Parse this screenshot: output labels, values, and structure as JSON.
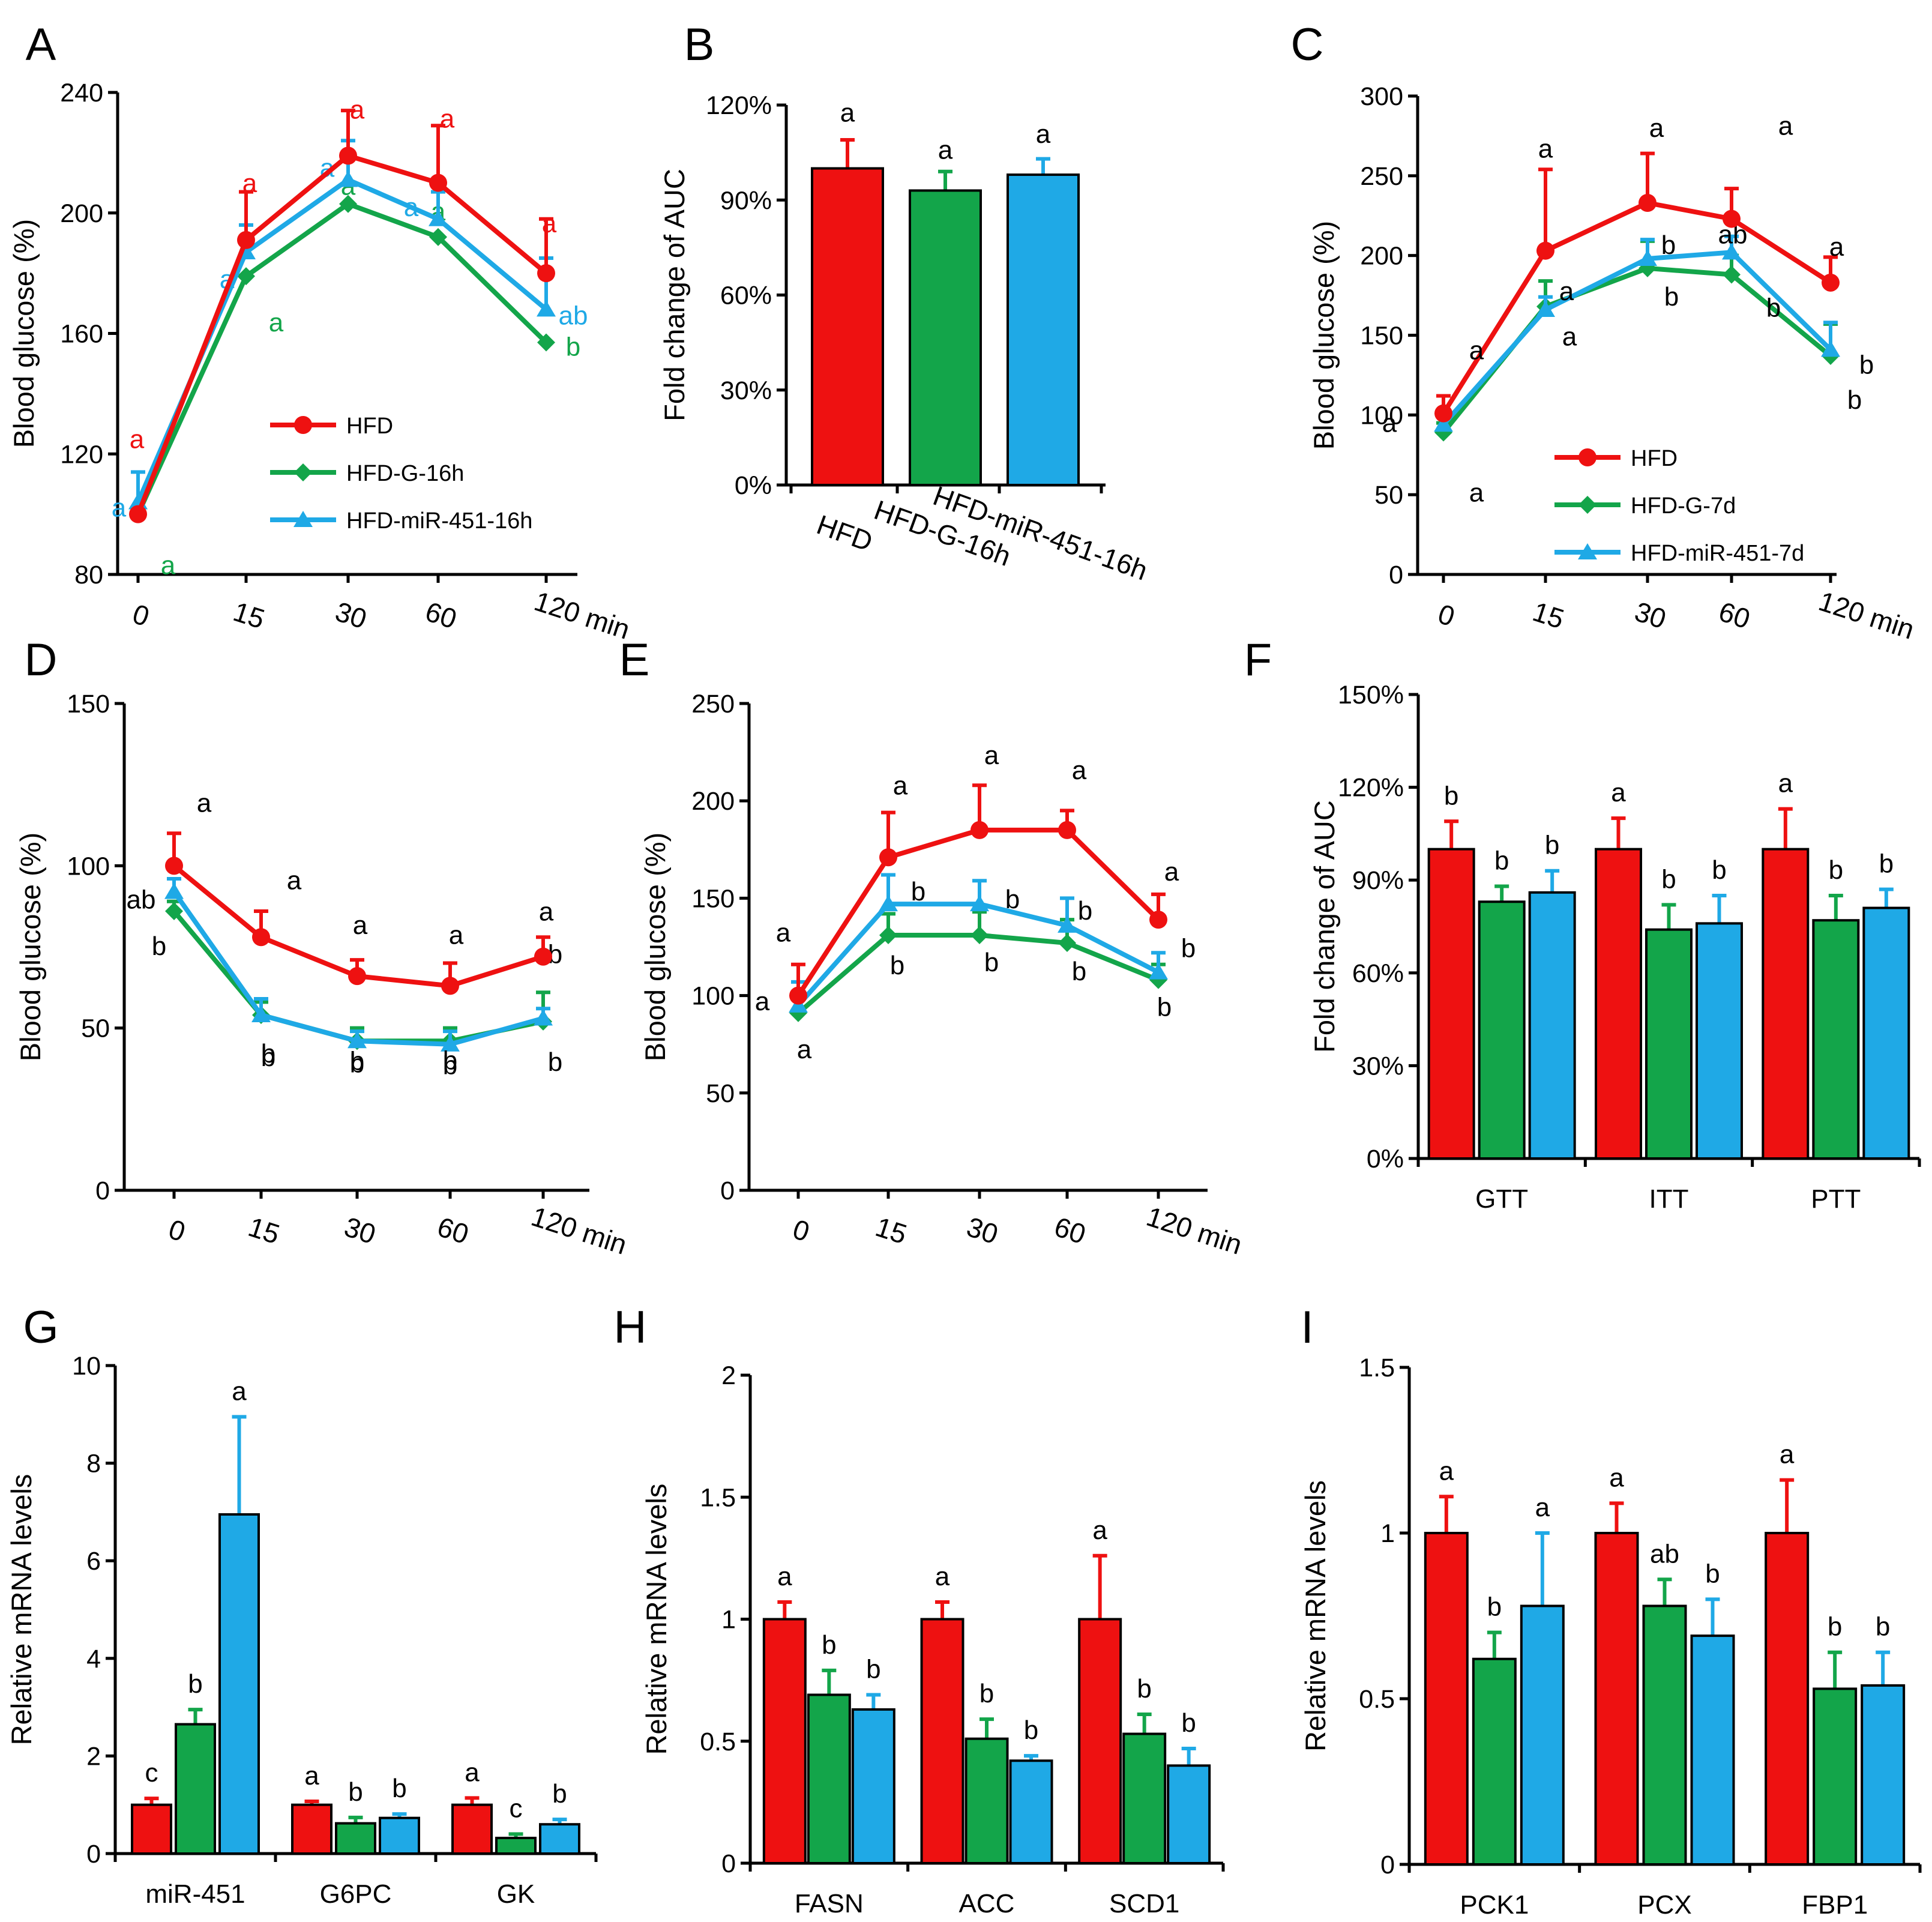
{
  "figure": {
    "series_names": [
      "HFD",
      "HFD-G",
      "HFD-miR-451"
    ],
    "colors": {
      "red": "#ee1111",
      "green": "#13a54a",
      "blue": "#1fa9e6",
      "axis": "#000000"
    }
  },
  "chart_data": [
    {
      "panel": "A",
      "type": "line",
      "x": [
        "0",
        "15",
        "30",
        "60",
        "120 min"
      ],
      "ylabel": "Blood glucose (%)",
      "ylim": [
        80,
        240
      ],
      "yticks": [
        "80",
        "120",
        "160",
        "200",
        "240"
      ],
      "legend": {
        "position": "bottom-right",
        "labels": [
          "HFD",
          "HFD-G-16h",
          "HFD-miR-451-16h"
        ]
      },
      "series": [
        {
          "name": "HFD-G-16h",
          "color": "green",
          "marker": "diamond",
          "values": [
            100,
            179,
            203,
            192,
            157
          ],
          "err": [
            0,
            0,
            0,
            0,
            0
          ],
          "letters": [
            "a",
            "a",
            "a",
            "a",
            "b"
          ]
        },
        {
          "name": "HFD-miR-451-16h",
          "color": "blue",
          "marker": "triangle",
          "values": [
            104,
            187,
            211,
            198,
            168
          ],
          "err": [
            10,
            9,
            13,
            9,
            17
          ],
          "letters": [
            "a",
            "a",
            "a",
            "a",
            "ab"
          ]
        },
        {
          "name": "HFD",
          "color": "red",
          "marker": "circle",
          "values": [
            100,
            191,
            219,
            210,
            180
          ],
          "err": [
            0,
            16,
            15,
            19,
            18
          ],
          "letters": [
            "a",
            "a",
            "a",
            "a",
            "a"
          ]
        }
      ]
    },
    {
      "panel": "B",
      "type": "bar",
      "categories": [
        "HFD",
        "HFD-G-16h",
        "HFD-miR-451-16h"
      ],
      "ylabel": "Fold change of AUC",
      "ylim": [
        0,
        120
      ],
      "yticks": [
        "0%",
        "30%",
        "60%",
        "90%",
        "120%"
      ],
      "values": [
        100,
        93,
        98
      ],
      "err": [
        9,
        6,
        5
      ],
      "colors": [
        "red",
        "green",
        "blue"
      ],
      "letters": [
        "a",
        "a",
        "a"
      ]
    },
    {
      "panel": "C",
      "type": "line",
      "x": [
        "0",
        "15",
        "30",
        "60",
        "120 min"
      ],
      "ylabel": "Blood glucose (%)",
      "ylim": [
        0,
        300
      ],
      "yticks": [
        "0",
        "50",
        "100",
        "150",
        "200",
        "250",
        "300"
      ],
      "legend": {
        "position": "bottom-right",
        "labels": [
          "HFD",
          "HFD-G-7d",
          "HFD-miR-451-7d"
        ]
      },
      "series": [
        {
          "name": "HFD-G-7d",
          "color": "green",
          "marker": "diamond",
          "values": [
            89,
            168,
            192,
            188,
            137
          ],
          "err": [
            6,
            16,
            17,
            12,
            20
          ],
          "letters": [
            "a",
            "a",
            "b",
            "b",
            "b"
          ]
        },
        {
          "name": "HFD-miR-451-7d",
          "color": "blue",
          "marker": "triangle",
          "values": [
            94,
            166,
            198,
            202,
            141
          ],
          "err": [
            0,
            8,
            12,
            10,
            17
          ],
          "letters": [
            "a",
            "a",
            "b",
            "ab",
            "b"
          ]
        },
        {
          "name": "HFD",
          "color": "red",
          "marker": "circle",
          "values": [
            101,
            203,
            233,
            223,
            183
          ],
          "err": [
            11,
            51,
            31,
            19,
            16
          ],
          "letters": [
            "a",
            "a",
            "a",
            "a",
            "a"
          ]
        }
      ]
    },
    {
      "panel": "D",
      "type": "line",
      "x": [
        "0",
        "15",
        "30",
        "60",
        "120 min"
      ],
      "ylabel": "Blood glucose (%)",
      "ylim": [
        0,
        150
      ],
      "yticks": [
        "0",
        "50",
        "100",
        "150"
      ],
      "series": [
        {
          "name": "HFD-G",
          "color": "green",
          "marker": "diamond",
          "values": [
            86,
            54,
            46,
            46,
            52
          ],
          "err": [
            3,
            4,
            4,
            4,
            9
          ],
          "letters": [
            "b",
            "b",
            "b",
            "b",
            "b"
          ]
        },
        {
          "name": "HFD-miR-451",
          "color": "blue",
          "marker": "triangle",
          "values": [
            92,
            54,
            46,
            45,
            53
          ],
          "err": [
            4,
            5,
            3,
            4,
            3
          ],
          "letters": [
            "ab",
            "b",
            "b",
            "b",
            "b"
          ]
        },
        {
          "name": "HFD",
          "color": "red",
          "marker": "circle",
          "values": [
            100,
            78,
            66,
            63,
            72
          ],
          "err": [
            10,
            8,
            5,
            7,
            6
          ],
          "letters": [
            "a",
            "a",
            "a",
            "a",
            "a"
          ]
        }
      ]
    },
    {
      "panel": "E",
      "type": "line",
      "x": [
        "0",
        "15",
        "30",
        "60",
        "120 min"
      ],
      "ylabel": "Blood glucose (%)",
      "ylim": [
        0,
        250
      ],
      "yticks": [
        "0",
        "50",
        "100",
        "150",
        "200",
        "250"
      ],
      "series": [
        {
          "name": "HFD-G",
          "color": "green",
          "marker": "diamond",
          "values": [
            91,
            131,
            131,
            127,
            108
          ],
          "err": [
            8,
            11,
            12,
            12,
            8
          ],
          "letters": [
            "a",
            "b",
            "b",
            "b",
            "b"
          ]
        },
        {
          "name": "HFD-miR-451",
          "color": "blue",
          "marker": "triangle",
          "values": [
            95,
            147,
            147,
            136,
            112
          ],
          "err": [
            12,
            15,
            12,
            14,
            10
          ],
          "letters": [
            "a",
            "b",
            "b",
            "b",
            "b"
          ]
        },
        {
          "name": "HFD",
          "color": "red",
          "marker": "circle",
          "values": [
            100,
            171,
            185,
            185,
            139
          ],
          "err": [
            16,
            23,
            23,
            10,
            13
          ],
          "letters": [
            "a",
            "a",
            "a",
            "a",
            "a"
          ]
        }
      ]
    },
    {
      "panel": "F",
      "type": "bar",
      "categories": [
        "GTT",
        "ITT",
        "PTT"
      ],
      "ylabel": "Fold change of AUC",
      "ylim": [
        0,
        150
      ],
      "yticks": [
        "0%",
        "30%",
        "60%",
        "90%",
        "120%",
        "150%"
      ],
      "series": [
        {
          "name": "HFD",
          "color": "red",
          "values": [
            100,
            100,
            100
          ],
          "err": [
            9,
            10,
            13
          ],
          "letters": [
            "b",
            "a",
            "a"
          ]
        },
        {
          "name": "HFD-G",
          "color": "green",
          "values": [
            83,
            74,
            77
          ],
          "err": [
            5,
            8,
            8
          ],
          "letters": [
            "b",
            "b",
            "b"
          ]
        },
        {
          "name": "HFD-miR-451",
          "color": "blue",
          "values": [
            86,
            76,
            81
          ],
          "err": [
            7,
            9,
            6
          ],
          "letters": [
            "b",
            "b",
            "b"
          ]
        }
      ]
    },
    {
      "panel": "G",
      "type": "bar",
      "categories": [
        "miR-451",
        "G6PC",
        "GK"
      ],
      "ylabel": "Relative mRNA levels",
      "ylim": [
        0,
        10
      ],
      "yticks": [
        "0",
        "2",
        "4",
        "6",
        "8",
        "10"
      ],
      "series": [
        {
          "name": "HFD",
          "color": "red",
          "values": [
            1.0,
            1.0,
            1.0
          ],
          "err": [
            0.13,
            0.07,
            0.14
          ],
          "letters": [
            "c",
            "a",
            "a"
          ]
        },
        {
          "name": "HFD-G",
          "color": "green",
          "values": [
            2.65,
            0.62,
            0.32
          ],
          "err": [
            0.3,
            0.12,
            0.08
          ],
          "letters": [
            "b",
            "b",
            "c"
          ]
        },
        {
          "name": "HFD-miR-451",
          "color": "blue",
          "values": [
            6.95,
            0.73,
            0.6
          ],
          "err": [
            2.0,
            0.08,
            0.1
          ],
          "letters": [
            "a",
            "b",
            "b"
          ]
        }
      ]
    },
    {
      "panel": "H",
      "type": "bar",
      "categories": [
        "FASN",
        "ACC",
        "SCD1"
      ],
      "ylabel": "Relative mRNA levels",
      "ylim": [
        0,
        2
      ],
      "yticks": [
        "0",
        "0.5",
        "1",
        "1.5",
        "2"
      ],
      "series": [
        {
          "name": "HFD",
          "color": "red",
          "values": [
            1.0,
            1.0,
            1.0
          ],
          "err": [
            0.07,
            0.07,
            0.26
          ],
          "letters": [
            "a",
            "a",
            "a"
          ]
        },
        {
          "name": "HFD-G",
          "color": "green",
          "values": [
            0.69,
            0.51,
            0.53
          ],
          "err": [
            0.1,
            0.08,
            0.08
          ],
          "letters": [
            "b",
            "b",
            "b"
          ]
        },
        {
          "name": "HFD-miR-451",
          "color": "blue",
          "values": [
            0.63,
            0.42,
            0.4
          ],
          "err": [
            0.06,
            0.02,
            0.07
          ],
          "letters": [
            "b",
            "b",
            "b"
          ]
        }
      ]
    },
    {
      "panel": "I",
      "type": "bar",
      "categories": [
        "PCK1",
        "PCX",
        "FBP1"
      ],
      "ylabel": "Relative mRNA levels",
      "ylim": [
        0,
        1.5
      ],
      "yticks": [
        "0",
        "0.5",
        "1",
        "1.5"
      ],
      "series": [
        {
          "name": "HFD",
          "color": "red",
          "values": [
            1.0,
            1.0,
            1.0
          ],
          "err": [
            0.11,
            0.09,
            0.16
          ],
          "letters": [
            "a",
            "a",
            "a"
          ]
        },
        {
          "name": "HFD-G",
          "color": "green",
          "values": [
            0.62,
            0.78,
            0.53
          ],
          "err": [
            0.08,
            0.08,
            0.11
          ],
          "letters": [
            "b",
            "ab",
            "b"
          ]
        },
        {
          "name": "HFD-miR-451",
          "color": "blue",
          "values": [
            0.78,
            0.69,
            0.54
          ],
          "err": [
            0.22,
            0.11,
            0.1
          ],
          "letters": [
            "a",
            "b",
            "b"
          ]
        }
      ]
    }
  ]
}
